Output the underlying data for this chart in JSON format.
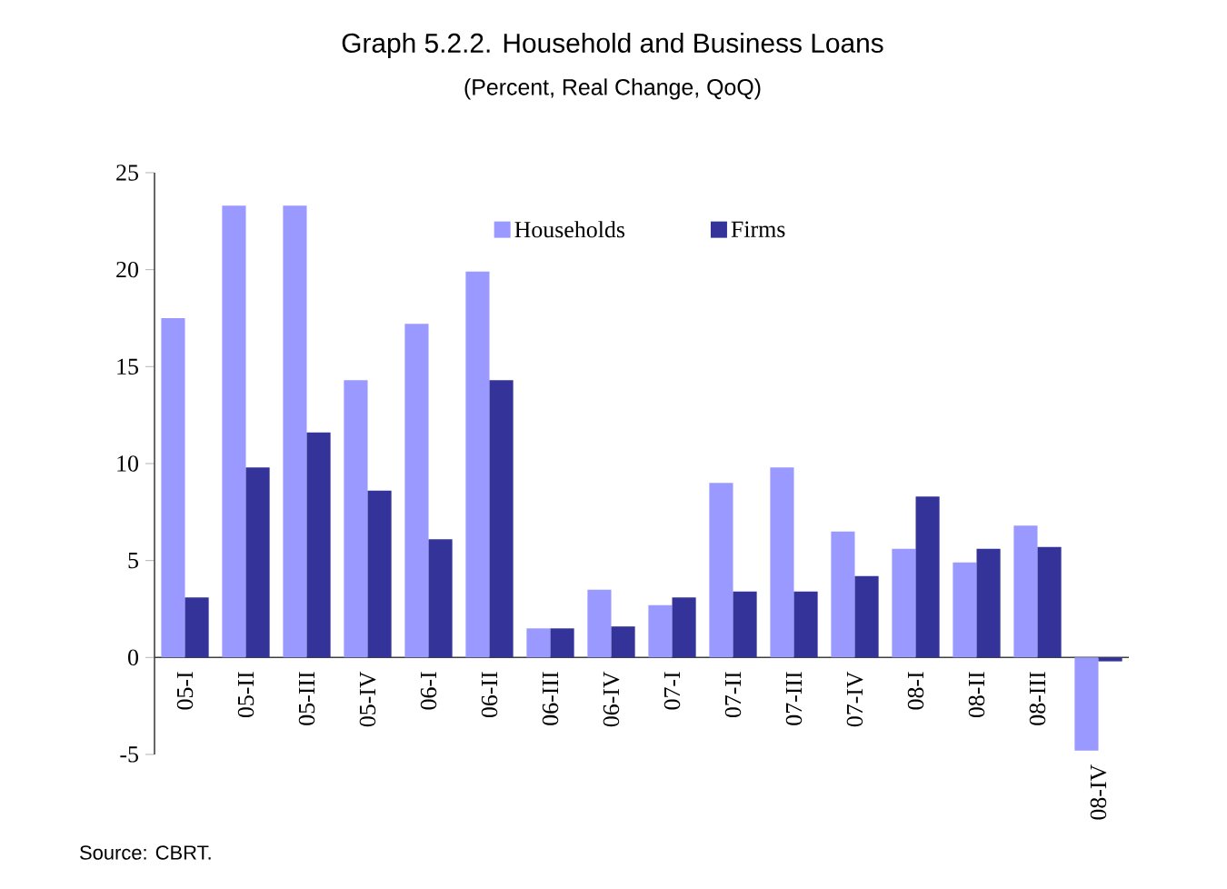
{
  "chart_data": {
    "type": "bar",
    "title": "Graph 5.2.2. Household and Business Loans",
    "subtitle": "(Percent, Real Change, QoQ)",
    "categories": [
      "05-I",
      "05-II",
      "05-III",
      "05-IV",
      "06-I",
      "06-II",
      "06-III",
      "06-IV",
      "07-I",
      "07-II",
      "07-III",
      "07-IV",
      "08-I",
      "08-II",
      "08-III",
      "08-IV"
    ],
    "series": [
      {
        "name": "Households",
        "color": "#9999ff",
        "values": [
          17.5,
          23.3,
          23.3,
          14.3,
          17.2,
          19.9,
          1.5,
          3.5,
          2.7,
          9.0,
          9.8,
          6.5,
          5.6,
          4.9,
          6.8,
          -4.8
        ]
      },
      {
        "name": "Firms",
        "color": "#333399",
        "values": [
          3.1,
          9.8,
          11.6,
          8.6,
          6.1,
          14.3,
          1.5,
          1.6,
          3.1,
          3.4,
          3.4,
          4.2,
          8.3,
          5.6,
          5.7,
          -0.2
        ]
      }
    ],
    "ylim": [
      -5,
      25
    ],
    "yticks": [
      -5,
      0,
      5,
      10,
      15,
      20,
      25
    ],
    "grid": false,
    "legend": "top",
    "annotations": [
      "Source: CBRT."
    ]
  }
}
